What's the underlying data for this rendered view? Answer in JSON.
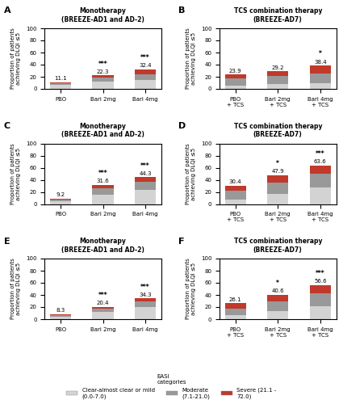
{
  "chart_data": [
    {
      "type": "bar",
      "stacked": true,
      "panel_label": "A",
      "title": "Monotherapy\n(BREEZE-AD1 and AD-2)",
      "ylabel": "Proportion of patients\nachieving DLQI ≤5",
      "categories": [
        "PBO",
        "Bari 2mg",
        "Bari 4mg"
      ],
      "series": [
        {
          "name": "Clear-almost clear or mild\n(0.0-7.0)",
          "color": "#d3d3d3",
          "values": [
            7.0,
            11.5,
            14.5
          ]
        },
        {
          "name": "Moderate\n(7.1-21.0)",
          "color": "#999999",
          "values": [
            2.0,
            7.0,
            10.0
          ]
        },
        {
          "name": "Severe (21.1 -\n72.0)",
          "color": "#c0392b",
          "values": [
            2.1,
            3.8,
            7.9
          ]
        }
      ],
      "totals": [
        11.1,
        22.3,
        32.4
      ],
      "significance": [
        null,
        "***",
        "***"
      ],
      "ylim": [
        0,
        100
      ],
      "yticks": [
        0,
        20,
        40,
        60,
        80,
        100
      ]
    },
    {
      "type": "bar",
      "stacked": true,
      "panel_label": "B",
      "title": "TCS combination therapy\n(BREEZE-AD7)",
      "ylabel": "Proportion of patients\nachieving DLQI ≤5",
      "categories": [
        "PBO\n+ TCS",
        "Bari 2mg\n+ TCS",
        "Bari 4mg\n+ TCS"
      ],
      "series": [
        {
          "name": "Clear-almost clear or mild\n(0.0-7.0)",
          "color": "#d3d3d3",
          "values": [
            5.5,
            7.5,
            9.0
          ]
        },
        {
          "name": "Moderate\n(7.1-21.0)",
          "color": "#999999",
          "values": [
            11.5,
            13.5,
            17.0
          ]
        },
        {
          "name": "Severe (21.1 -\n72.0)",
          "color": "#c0392b",
          "values": [
            6.9,
            8.2,
            12.4
          ]
        }
      ],
      "totals": [
        23.9,
        29.2,
        38.4
      ],
      "significance": [
        null,
        null,
        "*"
      ],
      "ylim": [
        0,
        100
      ],
      "yticks": [
        0,
        20,
        40,
        60,
        80,
        100
      ]
    },
    {
      "type": "bar",
      "stacked": true,
      "panel_label": "C",
      "title": "Monotherapy\n(BREEZE-AD1 and AD-2)",
      "ylabel": "Proportion of patients\nachieving DLQI ≤5",
      "categories": [
        "PBO",
        "Bari 2mg",
        "Bari 4mg"
      ],
      "series": [
        {
          "name": "Clear-almost clear or mild\n(0.0-7.0)",
          "color": "#d3d3d3",
          "values": [
            5.0,
            16.0,
            23.5
          ]
        },
        {
          "name": "Moderate\n(7.1-21.0)",
          "color": "#999999",
          "values": [
            2.5,
            10.0,
            13.0
          ]
        },
        {
          "name": "Severe (21.1 -\n72.0)",
          "color": "#c0392b",
          "values": [
            1.7,
            5.6,
            7.8
          ]
        }
      ],
      "totals": [
        9.2,
        31.6,
        44.3
      ],
      "significance": [
        null,
        "***",
        "***"
      ],
      "ylim": [
        0,
        100
      ],
      "yticks": [
        0,
        20,
        40,
        60,
        80,
        100
      ]
    },
    {
      "type": "bar",
      "stacked": true,
      "panel_label": "D",
      "title": "TCS combination therapy\n(BREEZE-AD7)",
      "ylabel": "Proportion of patients\nachieving DLQI ≤5",
      "categories": [
        "PBO\n+ TCS",
        "Bari 2mg\n+ TCS",
        "Bari 4mg\n+ TCS"
      ],
      "series": [
        {
          "name": "Clear-almost clear or mild\n(0.0-7.0)",
          "color": "#d3d3d3",
          "values": [
            8.0,
            17.0,
            28.0
          ]
        },
        {
          "name": "Moderate\n(7.1-21.0)",
          "color": "#999999",
          "values": [
            14.0,
            19.0,
            22.0
          ]
        },
        {
          "name": "Severe (21.1 -\n72.0)",
          "color": "#c0392b",
          "values": [
            8.4,
            11.9,
            13.6
          ]
        }
      ],
      "totals": [
        30.4,
        47.9,
        63.6
      ],
      "significance": [
        null,
        "*",
        "***"
      ],
      "ylim": [
        0,
        100
      ],
      "yticks": [
        0,
        20,
        40,
        60,
        80,
        100
      ]
    },
    {
      "type": "bar",
      "stacked": true,
      "panel_label": "E",
      "title": "Monotherapy\n(BREEZE-AD1 and AD-2)",
      "ylabel": "Proportion of patients\nachieving DLQI ≤5",
      "categories": [
        "PBO",
        "Bari 2mg",
        "Bari 4mg"
      ],
      "series": [
        {
          "name": "Clear-almost clear or mild\n(0.0-7.0)",
          "color": "#d3d3d3",
          "values": [
            4.5,
            12.0,
            20.0
          ]
        },
        {
          "name": "Moderate\n(7.1-21.0)",
          "color": "#999999",
          "values": [
            2.3,
            5.5,
            9.5
          ]
        },
        {
          "name": "Severe (21.1 -\n72.0)",
          "color": "#c0392b",
          "values": [
            1.5,
            2.9,
            4.8
          ]
        }
      ],
      "totals": [
        8.3,
        20.4,
        34.3
      ],
      "significance": [
        null,
        "***",
        "***"
      ],
      "ylim": [
        0,
        100
      ],
      "yticks": [
        0,
        20,
        40,
        60,
        80,
        100
      ]
    },
    {
      "type": "bar",
      "stacked": true,
      "panel_label": "F",
      "title": "TCS combination therapy\n(BREEZE-AD7)",
      "ylabel": "Proportion of patients\nachieving DLQI ≤5",
      "categories": [
        "PBO\n+ TCS",
        "Bari 2mg\n+ TCS",
        "Bari 4mg\n+ TCS"
      ],
      "series": [
        {
          "name": "Clear-almost clear or mild\n(0.0-7.0)",
          "color": "#d3d3d3",
          "values": [
            7.0,
            14.0,
            22.0
          ]
        },
        {
          "name": "Moderate\n(7.1-21.0)",
          "color": "#999999",
          "values": [
            11.0,
            16.0,
            21.0
          ]
        },
        {
          "name": "Severe (21.1 -\n72.0)",
          "color": "#c0392b",
          "values": [
            8.1,
            10.6,
            13.6
          ]
        }
      ],
      "totals": [
        26.1,
        40.6,
        56.6
      ],
      "significance": [
        null,
        "*",
        "***"
      ],
      "ylim": [
        0,
        100
      ],
      "yticks": [
        0,
        20,
        40,
        60,
        80,
        100
      ]
    }
  ],
  "legend": "lower center",
  "legend_title": "EASI\ncategories"
}
